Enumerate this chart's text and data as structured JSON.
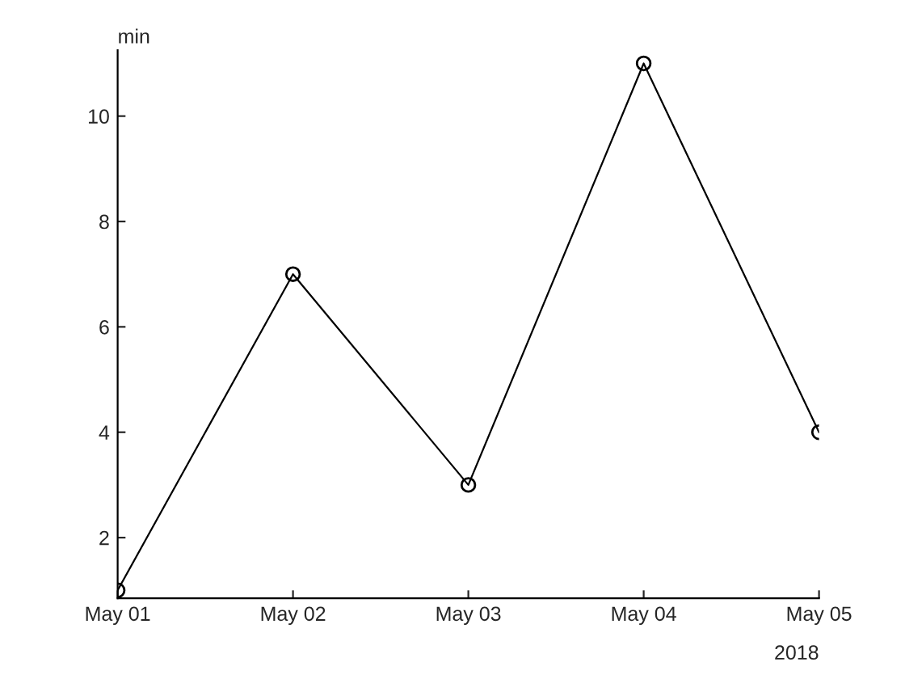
{
  "chart_data": {
    "type": "line",
    "x": [
      "2018-05-01",
      "2018-05-02",
      "2018-05-03",
      "2018-05-04",
      "2018-05-05"
    ],
    "series": [
      {
        "color": "#000000",
        "values": [
          1,
          7,
          3,
          11,
          4
        ]
      }
    ],
    "ylabel": "min",
    "annotations": [
      "2018"
    ],
    "xlim": [
      "2018-05-01",
      "2018-05-05"
    ],
    "xticks": [
      {
        "value": "2018-05-01",
        "label": "May 01"
      },
      {
        "value": "2018-05-02",
        "label": "May 02"
      },
      {
        "value": "2018-05-03",
        "label": "May 03"
      },
      {
        "value": "2018-05-04",
        "label": "May 04"
      },
      {
        "value": "2018-05-05",
        "label": "May 05"
      }
    ],
    "ylim": [
      0.85,
      11.25
    ],
    "yticks": [
      2,
      4,
      6,
      8,
      10
    ],
    "marker": "circle",
    "line_style": "solid",
    "grid": false,
    "legend": false
  }
}
